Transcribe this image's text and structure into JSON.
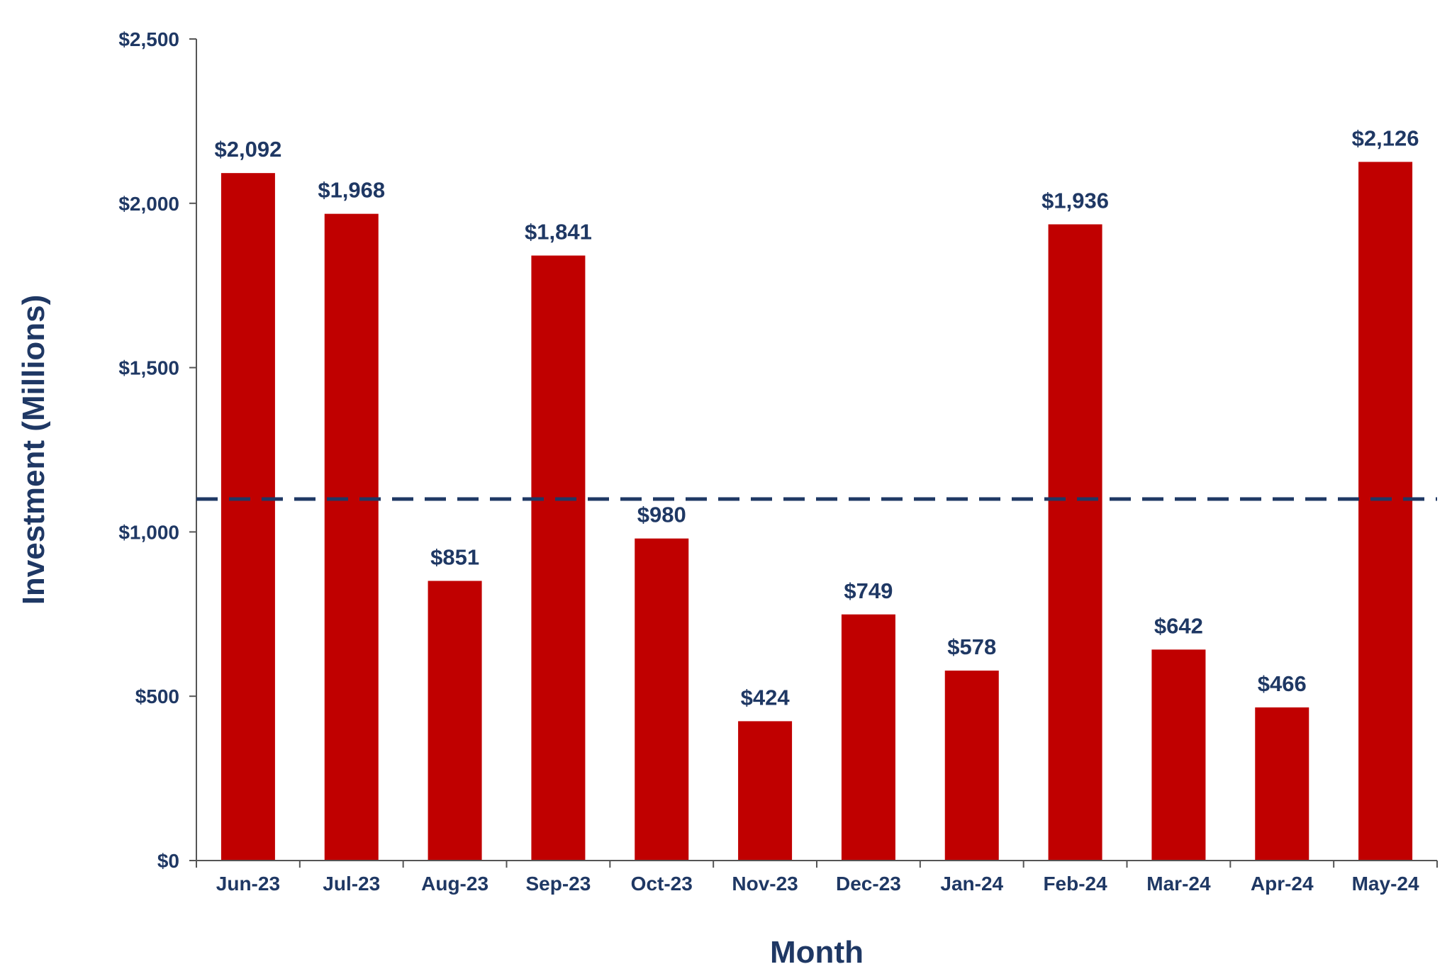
{
  "chart_data": {
    "type": "bar",
    "title": "",
    "xlabel": "Month",
    "ylabel": "Investment (Millions)",
    "categories": [
      "Jun-23",
      "Jul-23",
      "Aug-23",
      "Sep-23",
      "Oct-23",
      "Nov-23",
      "Dec-23",
      "Jan-24",
      "Feb-24",
      "Mar-24",
      "Apr-24",
      "May-24"
    ],
    "values": [
      2092,
      1968,
      851,
      1841,
      980,
      424,
      749,
      578,
      1936,
      642,
      466,
      2126
    ],
    "value_labels": [
      "$2,092",
      "$1,968",
      "$851",
      "$1,841",
      "$980",
      "$424",
      "$749",
      "$578",
      "$1,936",
      "$642",
      "$466",
      "$2,126"
    ],
    "ylim": [
      0,
      2500
    ],
    "yticks": [
      0,
      500,
      1000,
      1500,
      2000,
      2500
    ],
    "ytick_labels": [
      "$0",
      "$500",
      "$1,000",
      "$1,500",
      "$2,000",
      "$2,500"
    ],
    "reference_line": {
      "value": 1100,
      "style": "dashed"
    },
    "grid": false,
    "legend": "none",
    "colors": {
      "bar": "#C00000",
      "text": "#1F3864",
      "axis": "#555555",
      "reference_line": "#1F3864"
    }
  }
}
